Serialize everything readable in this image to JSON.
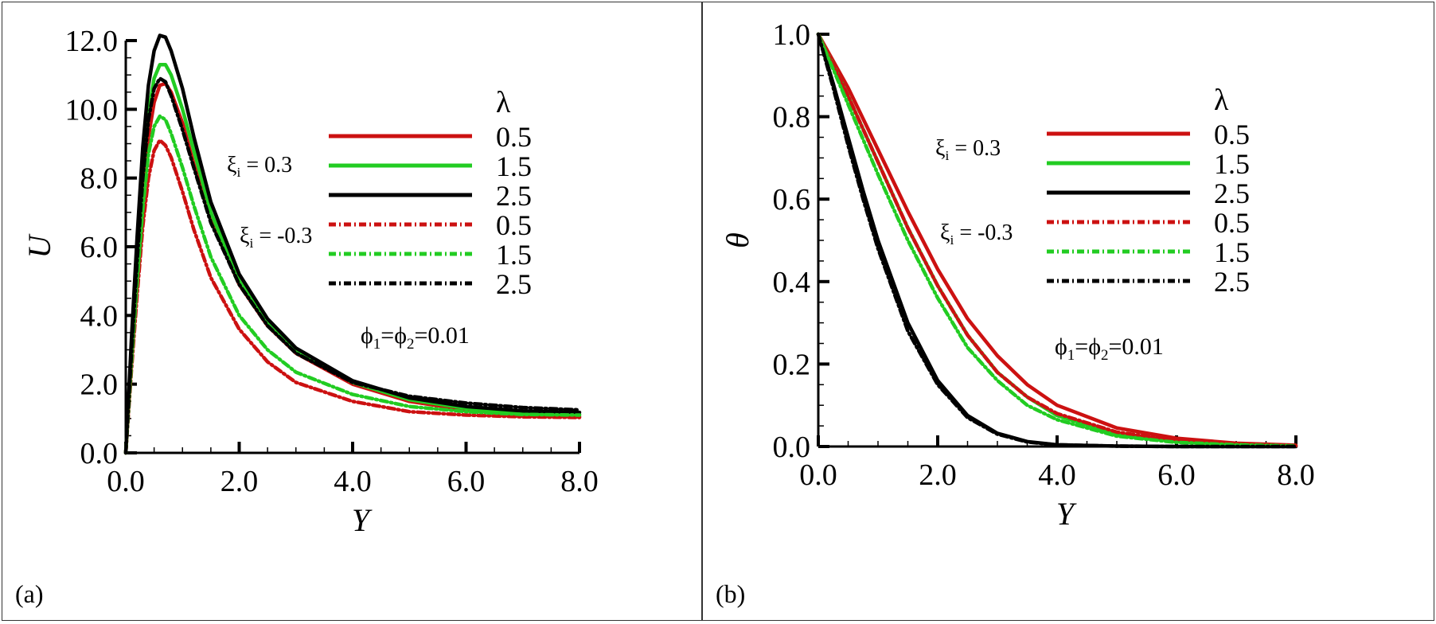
{
  "chart_data": [
    {
      "panel_label": "(a)",
      "type": "line",
      "xlabel": "Y",
      "ylabel": "U",
      "xlim": [
        0,
        8
      ],
      "ylim": [
        0,
        12
      ],
      "xticks": [
        "0.0",
        "2.0",
        "4.0",
        "6.0",
        "8.0"
      ],
      "yticks": [
        "0.0",
        "2.0",
        "4.0",
        "6.0",
        "8.0",
        "10.0",
        "12.0"
      ],
      "legend_title": "λ",
      "legend_placement": "right",
      "annotations": {
        "xi_pos": {
          "sym": "ξ",
          "sub": "i",
          "rest": " = 0.3"
        },
        "xi_neg": {
          "sym": "ξ",
          "sub": "i",
          "rest": " = -0.3"
        },
        "phi": {
          "p1": "ϕ",
          "s1": "1",
          "eq1": "=",
          "p2": "ϕ",
          "s2": "2",
          "eq2": "=0.01"
        }
      },
      "series": [
        {
          "name": "0.5",
          "group": "ξi = 0.3",
          "color": "#cc1111",
          "style": "solid",
          "x": [
            0,
            0.1,
            0.2,
            0.3,
            0.4,
            0.5,
            0.6,
            0.7,
            0.8,
            1.0,
            1.2,
            1.5,
            2.0,
            2.5,
            3.0,
            4.0,
            5.0,
            6.0,
            7.0,
            8.0
          ],
          "y": [
            0,
            2.7,
            5.3,
            7.6,
            9.2,
            10.2,
            10.7,
            10.75,
            10.5,
            9.6,
            8.4,
            6.8,
            4.9,
            3.7,
            2.9,
            2.0,
            1.5,
            1.25,
            1.12,
            1.05
          ]
        },
        {
          "name": "1.5",
          "group": "ξi = 0.3",
          "color": "#22cc22",
          "style": "solid",
          "x": [
            0,
            0.1,
            0.2,
            0.3,
            0.4,
            0.5,
            0.6,
            0.7,
            0.8,
            1.0,
            1.2,
            1.5,
            2.0,
            2.5,
            3.0,
            4.0,
            5.0,
            6.0,
            7.0,
            8.0
          ],
          "y": [
            0,
            3.0,
            5.8,
            8.2,
            9.9,
            10.9,
            11.3,
            11.3,
            11.0,
            10.0,
            8.8,
            7.0,
            5.0,
            3.8,
            3.0,
            2.05,
            1.55,
            1.3,
            1.17,
            1.12
          ]
        },
        {
          "name": "2.5",
          "group": "ξi = 0.3",
          "color": "#000000",
          "style": "solid",
          "x": [
            0,
            0.1,
            0.2,
            0.3,
            0.4,
            0.5,
            0.6,
            0.7,
            0.8,
            1.0,
            1.2,
            1.5,
            2.0,
            2.5,
            3.0,
            4.0,
            5.0,
            6.0,
            7.0,
            8.0
          ],
          "y": [
            0,
            3.3,
            6.3,
            8.9,
            10.7,
            11.7,
            12.15,
            12.1,
            11.7,
            10.6,
            9.2,
            7.3,
            5.2,
            3.9,
            3.05,
            2.1,
            1.6,
            1.35,
            1.22,
            1.18
          ]
        },
        {
          "name": "0.5",
          "group": "ξi = -0.3",
          "color": "#cc1111",
          "style": "dashdot",
          "x": [
            0,
            0.1,
            0.2,
            0.3,
            0.4,
            0.5,
            0.6,
            0.7,
            0.8,
            1.0,
            1.2,
            1.5,
            2.0,
            2.5,
            3.0,
            4.0,
            5.0,
            6.0,
            7.0,
            8.0
          ],
          "y": [
            0,
            2.4,
            4.6,
            6.6,
            8.0,
            8.8,
            9.1,
            8.95,
            8.6,
            7.6,
            6.5,
            5.1,
            3.6,
            2.65,
            2.05,
            1.5,
            1.2,
            1.1,
            1.05,
            1.03
          ]
        },
        {
          "name": "1.5",
          "group": "ξi = -0.3",
          "color": "#22cc22",
          "style": "dashdot",
          "x": [
            0,
            0.1,
            0.2,
            0.3,
            0.4,
            0.5,
            0.6,
            0.7,
            0.8,
            1.0,
            1.2,
            1.5,
            2.0,
            2.5,
            3.0,
            4.0,
            5.0,
            6.0,
            7.0,
            8.0
          ],
          "y": [
            0,
            2.6,
            5.0,
            7.1,
            8.7,
            9.5,
            9.8,
            9.7,
            9.3,
            8.3,
            7.2,
            5.7,
            4.0,
            3.0,
            2.35,
            1.7,
            1.35,
            1.2,
            1.12,
            1.1
          ]
        },
        {
          "name": "2.5",
          "group": "ξi = -0.3",
          "color": "#000000",
          "style": "dashdot",
          "x": [
            0,
            0.1,
            0.2,
            0.3,
            0.4,
            0.5,
            0.6,
            0.7,
            0.8,
            1.0,
            1.2,
            1.5,
            2.0,
            2.5,
            3.0,
            4.0,
            5.0,
            6.0,
            7.0,
            8.0
          ],
          "y": [
            0,
            2.9,
            5.6,
            8.0,
            9.7,
            10.6,
            10.9,
            10.8,
            10.4,
            9.4,
            8.3,
            6.7,
            4.9,
            3.7,
            2.9,
            2.05,
            1.65,
            1.45,
            1.32,
            1.25
          ]
        }
      ]
    },
    {
      "panel_label": "(b)",
      "type": "line",
      "xlabel": "Y",
      "ylabel": "θ",
      "xlim": [
        0,
        8
      ],
      "ylim": [
        0,
        1
      ],
      "xticks": [
        "0.0",
        "2.0",
        "4.0",
        "6.0",
        "8.0"
      ],
      "yticks": [
        "0.0",
        "0.2",
        "0.4",
        "0.6",
        "0.8",
        "1.0"
      ],
      "legend_title": "λ",
      "legend_placement": "right",
      "annotations": {
        "xi_pos": {
          "sym": "ξ",
          "sub": "i",
          "rest": " = 0.3"
        },
        "xi_neg": {
          "sym": "ξ",
          "sub": "i",
          "rest": " = -0.3"
        },
        "phi": {
          "p1": "ϕ",
          "s1": "1",
          "eq1": "=",
          "p2": "ϕ",
          "s2": "2",
          "eq2": "=0.01"
        }
      },
      "series": [
        {
          "name": "0.5",
          "group": "ξi = 0.3",
          "color": "#cc1111",
          "style": "solid",
          "x": [
            0,
            0.5,
            1.0,
            1.5,
            2.0,
            2.5,
            3.0,
            3.5,
            4.0,
            5.0,
            6.0,
            7.0,
            8.0
          ],
          "y": [
            1.0,
            0.87,
            0.72,
            0.57,
            0.43,
            0.31,
            0.22,
            0.15,
            0.1,
            0.045,
            0.02,
            0.008,
            0.003
          ]
        },
        {
          "name": "1.5",
          "group": "ξi = 0.3",
          "color": "#22cc22",
          "style": "solid",
          "x": [
            0,
            0.5,
            1.0,
            1.5,
            2.0,
            2.5,
            3.0,
            3.5,
            4.0,
            5.0,
            6.0,
            7.0,
            8.0
          ],
          "y": [
            1.0,
            0.85,
            0.69,
            0.53,
            0.39,
            0.27,
            0.18,
            0.12,
            0.075,
            0.03,
            0.012,
            0.005,
            0.002
          ]
        },
        {
          "name": "2.5",
          "group": "ξi = 0.3",
          "color": "#000000",
          "style": "solid",
          "x": [
            0,
            0.25,
            0.5,
            0.75,
            1.0,
            1.5,
            2.0,
            2.5,
            3.0,
            3.5,
            4.0,
            5.0,
            6.0,
            8.0
          ],
          "y": [
            1.0,
            0.88,
            0.75,
            0.62,
            0.5,
            0.3,
            0.16,
            0.075,
            0.032,
            0.012,
            0.004,
            0.001,
            0.0,
            0.0
          ]
        },
        {
          "name": "0.5",
          "group": "ξi = -0.3",
          "color": "#cc1111",
          "style": "dashdot",
          "x": [
            0,
            0.5,
            1.0,
            1.5,
            2.0,
            2.5,
            3.0,
            3.5,
            4.0,
            5.0,
            6.0,
            7.0,
            8.0
          ],
          "y": [
            1.0,
            0.85,
            0.69,
            0.53,
            0.39,
            0.27,
            0.18,
            0.12,
            0.08,
            0.035,
            0.015,
            0.006,
            0.002
          ]
        },
        {
          "name": "1.5",
          "group": "ξi = -0.3",
          "color": "#22cc22",
          "style": "dashdot",
          "x": [
            0,
            0.5,
            1.0,
            1.5,
            2.0,
            2.5,
            3.0,
            3.5,
            4.0,
            5.0,
            6.0,
            7.0,
            8.0
          ],
          "y": [
            1.0,
            0.83,
            0.66,
            0.5,
            0.36,
            0.24,
            0.16,
            0.1,
            0.065,
            0.025,
            0.01,
            0.004,
            0.001
          ]
        },
        {
          "name": "2.5",
          "group": "ξi = -0.3",
          "color": "#000000",
          "style": "dashdot",
          "x": [
            0,
            0.25,
            0.5,
            0.75,
            1.0,
            1.5,
            2.0,
            2.5,
            3.0,
            3.5,
            4.0,
            5.0,
            6.0,
            8.0
          ],
          "y": [
            1.0,
            0.87,
            0.73,
            0.6,
            0.48,
            0.28,
            0.15,
            0.07,
            0.03,
            0.011,
            0.004,
            0.001,
            0.0,
            0.0
          ]
        }
      ]
    }
  ]
}
